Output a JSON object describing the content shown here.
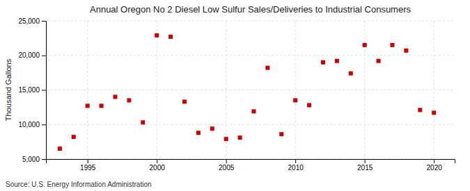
{
  "chart_data": {
    "type": "scatter",
    "title": "Annual Oregon No 2 Diesel Low Sulfur Sales/Deliveries to Industrial Consumers",
    "ylabel": "Thousand Gallons",
    "annotations": [
      "Source: U.S. Energy Information Administration"
    ],
    "x": [
      1993,
      1994,
      1995,
      1996,
      1997,
      1998,
      1999,
      2000,
      2001,
      2002,
      2003,
      2004,
      2005,
      2006,
      2007,
      2008,
      2009,
      2010,
      2011,
      2012,
      2013,
      2014,
      2015,
      2016,
      2017,
      2018,
      2019,
      2020
    ],
    "values": [
      6500,
      8200,
      12700,
      12700,
      14000,
      13500,
      10300,
      22900,
      22700,
      13300,
      8800,
      9400,
      7900,
      8100,
      11900,
      18200,
      8600,
      13500,
      12800,
      19000,
      19200,
      17400,
      21500,
      19200,
      21500,
      20700,
      12100,
      11700
    ],
    "color": "#cc0000",
    "marker": "square",
    "xlim": [
      1992,
      2021.5
    ],
    "ylim": [
      5000,
      25000
    ],
    "xticks": [
      1995,
      2000,
      2005,
      2010,
      2015,
      2020
    ],
    "yticks": [
      {
        "value": 5000,
        "label": "5,000"
      },
      {
        "value": 10000,
        "label": "10,000"
      },
      {
        "value": 15000,
        "label": "15,000"
      },
      {
        "value": 20000,
        "label": "20,000"
      },
      {
        "value": 25000,
        "label": "25,000"
      }
    ],
    "grid": true
  }
}
